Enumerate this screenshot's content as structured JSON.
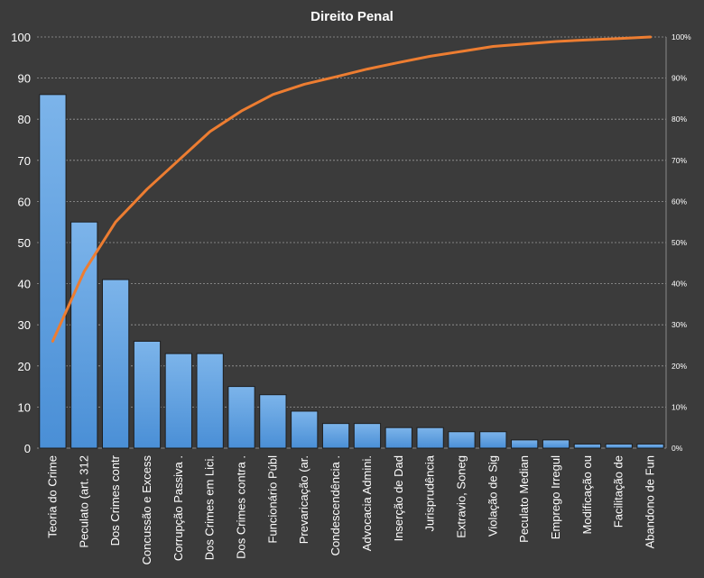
{
  "chart_data": {
    "type": "bar",
    "title": "Direito  Penal",
    "categories": [
      "Teoria do Crime",
      "Peculato (art. 312",
      "Dos Crimes contr",
      "Concussão e Excess",
      "Corrupção Passiva .",
      "Dos Crimes em Lici.",
      "Dos Crimes contra .",
      "Funcionário Públ",
      "Prevaricação (ar.",
      "Condescendência  .",
      "Advocacia Admini.",
      "Inserção de Dad",
      "Jurisprudência",
      "Extravio, Soneg",
      "Violação de Sig",
      "Peculato Median",
      "Emprego Irregul",
      "Modificação ou",
      "Facilitação de",
      "Abandono  de Fun"
    ],
    "series": [
      {
        "type": "bar",
        "values": [
          86,
          55,
          41,
          26,
          23,
          23,
          15,
          13,
          9,
          6,
          6,
          5,
          5,
          4,
          4,
          2,
          2,
          1,
          1,
          1
        ]
      },
      {
        "type": "line",
        "axis": "right",
        "values": [
          26,
          43,
          55,
          63,
          70,
          77,
          82,
          86,
          88.5,
          90.3,
          92.2,
          93.8,
          95.3,
          96.5,
          97.7,
          98.3,
          98.9,
          99.3,
          99.6,
          100
        ]
      }
    ],
    "ylim": [
      0,
      100
    ],
    "yticks": [
      "0",
      "10",
      "20",
      "30",
      "40",
      "50",
      "60",
      "70",
      "80",
      "90",
      "100"
    ],
    "y2lim": [
      0,
      100
    ],
    "y2ticks": [
      "0%",
      "10%",
      "20%",
      "30%",
      "40%",
      "50%",
      "60%",
      "70%",
      "80%",
      "90%",
      "100%"
    ],
    "grid": true,
    "colors": {
      "background": "#3b3b3b",
      "bar": "#4a8fd6",
      "bar_top": "#7cb4ea",
      "line": "#ed7d31",
      "grid": "#9a9a9a",
      "text": "#ffffff"
    }
  }
}
